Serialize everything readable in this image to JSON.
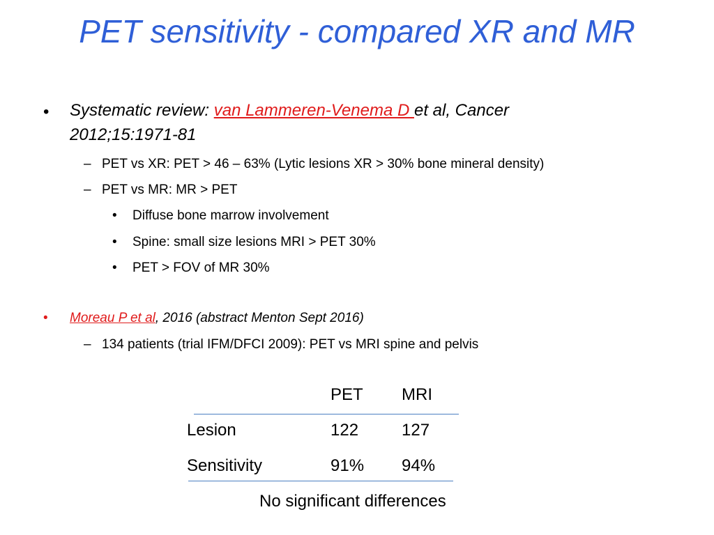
{
  "slide": {
    "title": "PET sensitivity  - compared XR and MR"
  },
  "bullets": {
    "b1": {
      "prefix": "Systematic review: ",
      "link": "van Lammeren-Venema D ",
      "suffix": "et al, Cancer",
      "line2": "2012;15:1971-81"
    },
    "b1_sub1": "PET vs XR: PET > 46 – 63% (Lytic lesions XR > 30% bone mineral density)",
    "b1_sub2": "PET vs MR: MR > PET",
    "b1_sub2_items": [
      "Diffuse bone marrow involvement",
      "Spine:  small size lesions MRI > PET 30%",
      "PET > FOV of MR 30%"
    ],
    "b2": {
      "link": "Moreau P et al",
      "suffix": ", 2016 (abstract Menton Sept 2016)"
    },
    "b2_sub1": "134 patients (trial IFM/DFCI 2009): PET vs MRI spine and pelvis"
  },
  "table": {
    "headers": [
      "PET",
      "MRI"
    ],
    "rows": [
      {
        "label": "Lesion",
        "pet": "122",
        "mri": "127"
      },
      {
        "label": "Sensitivity",
        "pet": "91%",
        "mri": "94%"
      }
    ],
    "note": "No significant differences"
  },
  "symbols": {
    "bullet": "•",
    "dash": "–"
  },
  "colors": {
    "title": "#2f5fd7",
    "link": "#e01b1b",
    "table_rule": "#4a7fc1"
  }
}
